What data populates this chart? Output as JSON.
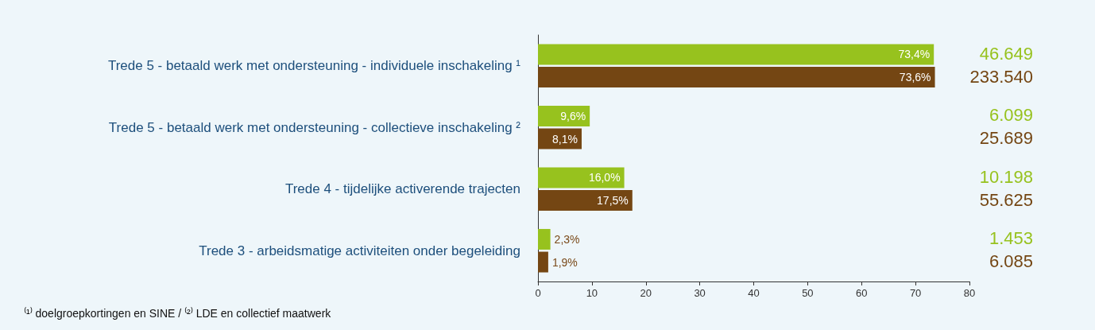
{
  "chart_data": {
    "type": "bar",
    "orientation": "horizontal",
    "categories": [
      "Trede 5 - betaald werk met ondersteuning - individuele inschakeling ¹",
      "Trede 5 - betaald werk met ondersteuning - collectieve inschakeling ²",
      "Trede 4 - tijdelijke activerende trajecten",
      "Trede 3 - arbeidsmatige activiteiten onder begeleiding"
    ],
    "series": [
      {
        "color": "#97c21e",
        "values": [
          73.4,
          9.6,
          16.0,
          2.3
        ],
        "value_labels": [
          "73,4%",
          "9,6%",
          "16,0%",
          "2,3%"
        ]
      },
      {
        "color": "#744613",
        "values": [
          73.6,
          8.1,
          17.5,
          1.9
        ],
        "value_labels": [
          "73,6%",
          "8,1%",
          "17,5%",
          "1,9%"
        ]
      }
    ],
    "xlim": [
      0,
      80
    ],
    "xticks": [
      0,
      10,
      20,
      30,
      40,
      50,
      60,
      70,
      80
    ],
    "grid": false,
    "annotations": [
      "46.649",
      "233.540",
      "6.099",
      "25.689",
      "10.198",
      "55.625",
      "1.453",
      "6.085",
      "⁽¹⁾ doelgroepkortingen en SINE / ⁽²⁾ LDE en collectief maatwerk"
    ]
  }
}
